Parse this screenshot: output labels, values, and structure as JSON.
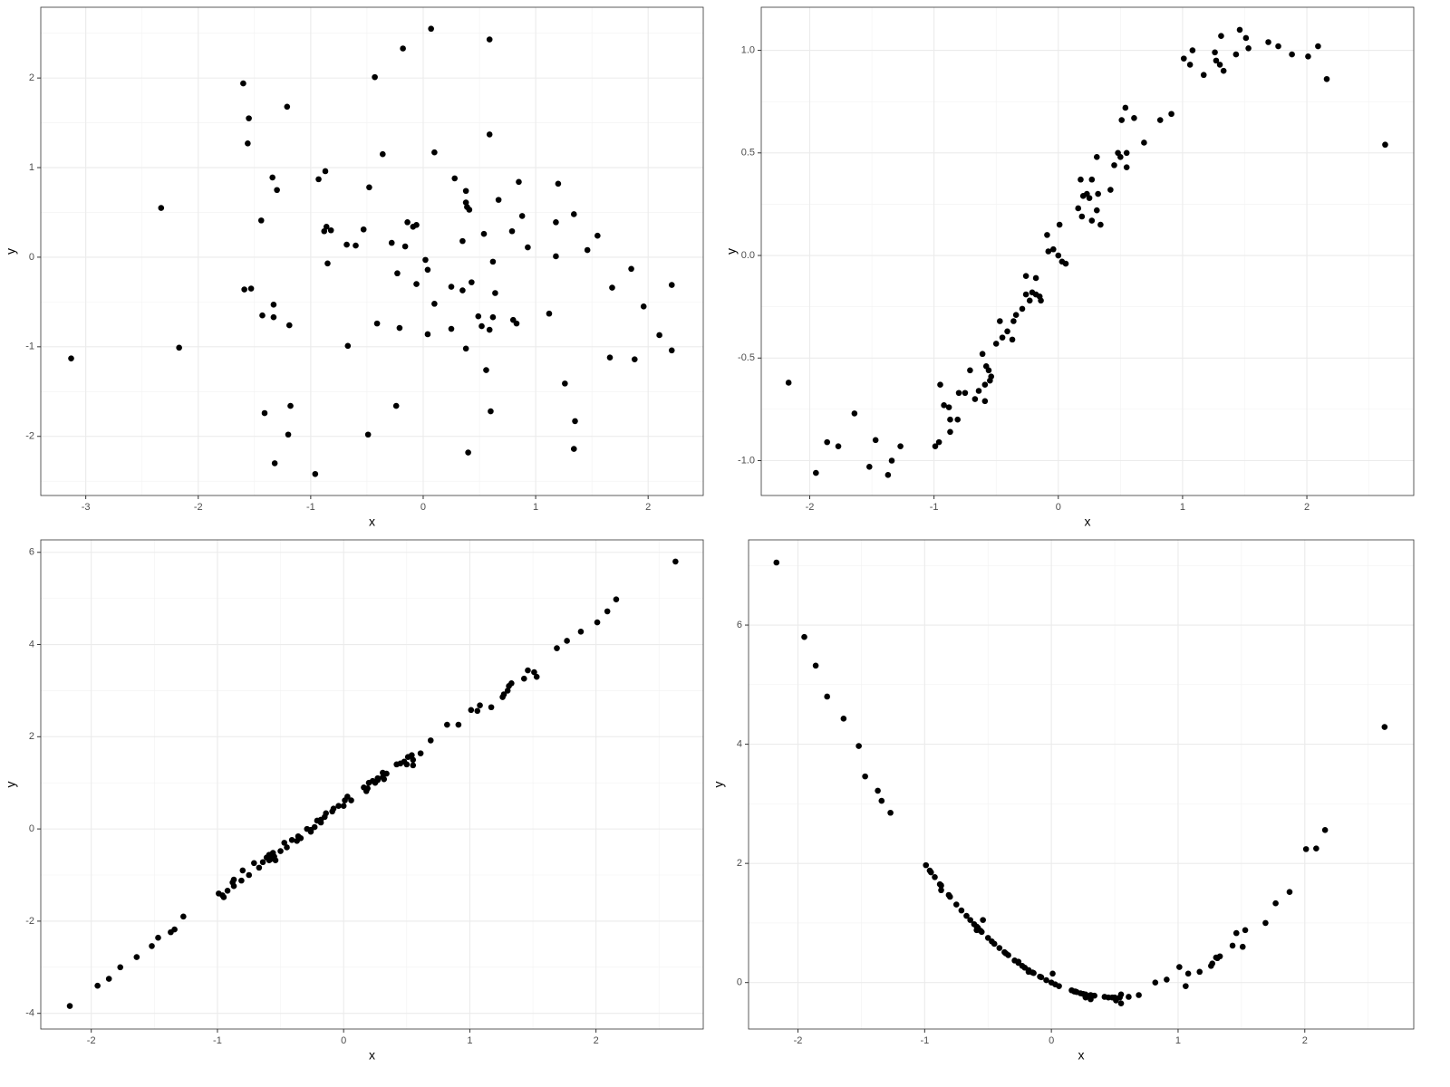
{
  "chart_data": [
    {
      "type": "scatter",
      "x_label": "x",
      "y_label": "y",
      "color": "#000000",
      "grid": true,
      "xlim": [
        -3.4,
        2.49
      ],
      "ylim": [
        -2.66,
        2.79
      ],
      "xticks": [
        -3,
        -2,
        -1,
        0,
        1,
        2
      ],
      "yticks": [
        -2,
        -1,
        0,
        1,
        2
      ],
      "x": [
        -3.13,
        -2.33,
        -2.17,
        -1.6,
        -1.55,
        -1.56,
        -1.59,
        -1.53,
        -1.44,
        -1.43,
        -1.41,
        -1.34,
        -1.3,
        -1.33,
        -1.33,
        -1.32,
        -1.21,
        -1.19,
        -1.18,
        -1.2,
        -0.96,
        -0.93,
        -0.87,
        -0.88,
        -0.86,
        -0.82,
        -0.85,
        -0.68,
        -0.6,
        -0.67,
        -0.53,
        -0.49,
        -0.48,
        -0.43,
        -0.41,
        -0.36,
        -0.28,
        -0.24,
        -0.23,
        -0.21,
        -0.18,
        -0.16,
        -0.14,
        -0.09,
        -0.06,
        -0.06,
        0.02,
        0.04,
        0.04,
        0.07,
        0.1,
        0.1,
        0.25,
        0.25,
        0.28,
        0.35,
        0.35,
        0.38,
        0.38,
        0.39,
        0.41,
        0.38,
        0.4,
        0.43,
        0.49,
        0.52,
        0.54,
        0.56,
        0.59,
        0.59,
        0.59,
        0.6,
        0.62,
        0.62,
        0.64,
        0.67,
        0.79,
        0.8,
        0.83,
        0.85,
        0.88,
        0.93,
        1.12,
        1.18,
        1.18,
        1.2,
        1.26,
        1.34,
        1.35,
        1.34,
        1.46,
        1.55,
        1.68,
        1.66,
        1.85,
        1.88,
        1.96,
        2.1,
        2.21,
        2.21
      ],
      "y": [
        -1.13,
        0.55,
        -1.01,
        1.94,
        1.55,
        1.27,
        -0.36,
        -0.35,
        0.41,
        -0.65,
        -1.74,
        0.89,
        0.75,
        -0.53,
        -0.67,
        -2.3,
        1.68,
        -0.76,
        -1.66,
        -1.98,
        -2.42,
        0.87,
        0.96,
        0.29,
        0.34,
        0.3,
        -0.07,
        0.14,
        0.13,
        -0.99,
        0.31,
        -1.98,
        0.78,
        2.01,
        -0.74,
        1.15,
        0.16,
        -1.66,
        -0.18,
        -0.79,
        2.33,
        0.12,
        0.39,
        0.34,
        0.36,
        -0.3,
        -0.03,
        -0.14,
        -0.86,
        2.55,
        1.17,
        -0.52,
        -0.33,
        -0.8,
        0.88,
        -0.37,
        0.18,
        0.74,
        0.61,
        0.56,
        0.53,
        -1.02,
        -2.18,
        -0.28,
        -0.66,
        -0.77,
        0.26,
        -1.26,
        2.43,
        1.37,
        -0.81,
        -1.72,
        -0.05,
        -0.67,
        -0.4,
        0.64,
        0.29,
        -0.7,
        -0.74,
        0.84,
        0.46,
        0.11,
        -0.63,
        0.01,
        0.39,
        0.82,
        -1.41,
        0.48,
        -1.83,
        -2.14,
        0.08,
        0.24,
        -0.34,
        -1.12,
        -0.13,
        -1.14,
        -0.55,
        -0.87,
        -0.31,
        -1.04
      ]
    },
    {
      "type": "scatter",
      "x_label": "x",
      "y_label": "y",
      "color": "#000000",
      "grid": true,
      "xlim": [
        -2.39,
        2.86
      ],
      "ylim": [
        -1.17,
        1.21
      ],
      "xticks": [
        -2,
        -1,
        0,
        1,
        2
      ],
      "yticks": [
        {
          "value": -1,
          "label": "-1.0"
        },
        {
          "value": -0.5,
          "label": "-0.5"
        },
        {
          "value": 0,
          "label": "0.0"
        },
        {
          "value": 0.5,
          "label": "0.5"
        },
        {
          "value": 1,
          "label": "1.0"
        }
      ],
      "x": [
        -2.17,
        -1.95,
        -1.86,
        -1.77,
        -1.64,
        -1.52,
        -1.47,
        -1.37,
        -1.34,
        -1.27,
        -0.99,
        -0.96,
        -0.95,
        -0.92,
        -0.88,
        -0.87,
        -0.87,
        -0.81,
        -0.8,
        -0.75,
        -0.71,
        -0.67,
        -0.64,
        -0.61,
        -0.59,
        -0.59,
        -0.58,
        -0.56,
        -0.55,
        -0.54,
        -0.5,
        -0.47,
        -0.45,
        -0.41,
        -0.37,
        -0.36,
        -0.34,
        -0.29,
        -0.26,
        -0.26,
        -0.23,
        -0.21,
        -0.18,
        -0.18,
        -0.15,
        -0.14,
        -0.09,
        -0.08,
        -0.04,
        0.0,
        0.01,
        0.03,
        0.06,
        0.16,
        0.18,
        0.19,
        0.2,
        0.23,
        0.25,
        0.27,
        0.27,
        0.31,
        0.31,
        0.32,
        0.34,
        0.42,
        0.45,
        0.48,
        0.5,
        0.51,
        0.54,
        0.55,
        0.55,
        0.61,
        0.69,
        0.82,
        0.91,
        1.01,
        1.06,
        1.08,
        1.17,
        1.26,
        1.27,
        1.3,
        1.31,
        1.33,
        1.43,
        1.46,
        1.51,
        1.53,
        1.69,
        1.77,
        1.88,
        2.01,
        2.09,
        2.16,
        2.63
      ],
      "y": [
        -0.62,
        -1.06,
        -0.91,
        -0.93,
        -0.77,
        -1.03,
        -0.9,
        -1.07,
        -1.0,
        -0.93,
        -0.93,
        -0.91,
        -0.63,
        -0.73,
        -0.74,
        -0.8,
        -0.86,
        -0.8,
        -0.67,
        -0.67,
        -0.56,
        -0.7,
        -0.66,
        -0.48,
        -0.71,
        -0.63,
        -0.54,
        -0.56,
        -0.61,
        -0.59,
        -0.43,
        -0.32,
        -0.4,
        -0.37,
        -0.41,
        -0.32,
        -0.29,
        -0.26,
        -0.1,
        -0.19,
        -0.22,
        -0.18,
        -0.11,
        -0.19,
        -0.2,
        -0.22,
        0.1,
        0.02,
        0.03,
        0.0,
        0.15,
        -0.03,
        -0.04,
        0.23,
        0.37,
        0.19,
        0.29,
        0.3,
        0.28,
        0.37,
        0.17,
        0.48,
        0.22,
        0.3,
        0.15,
        0.32,
        0.44,
        0.5,
        0.48,
        0.66,
        0.72,
        0.43,
        0.5,
        0.67,
        0.55,
        0.66,
        0.69,
        0.96,
        0.93,
        1.0,
        0.88,
        0.99,
        0.95,
        0.93,
        1.07,
        0.9,
        0.98,
        1.1,
        1.06,
        1.01,
        1.04,
        1.02,
        0.98,
        0.97,
        1.02,
        0.86,
        0.54
      ]
    },
    {
      "type": "scatter",
      "x_label": "x",
      "y_label": "y",
      "color": "#000000",
      "grid": true,
      "xlim": [
        -2.4,
        2.85
      ],
      "ylim": [
        -4.34,
        6.27
      ],
      "xticks": [
        -2,
        -1,
        0,
        1,
        2
      ],
      "yticks": [
        -4,
        -2,
        0,
        2,
        4,
        6
      ],
      "x": [
        -2.17,
        -1.95,
        -1.86,
        -1.77,
        -1.64,
        -1.52,
        -1.47,
        -1.37,
        -1.34,
        -1.27,
        -0.99,
        -0.96,
        -0.95,
        -0.92,
        -0.88,
        -0.87,
        -0.87,
        -0.81,
        -0.8,
        -0.75,
        -0.71,
        -0.67,
        -0.64,
        -0.61,
        -0.59,
        -0.59,
        -0.58,
        -0.56,
        -0.55,
        -0.54,
        -0.5,
        -0.47,
        -0.45,
        -0.41,
        -0.37,
        -0.36,
        -0.34,
        -0.29,
        -0.26,
        -0.26,
        -0.23,
        -0.21,
        -0.18,
        -0.18,
        -0.15,
        -0.14,
        -0.09,
        -0.08,
        -0.04,
        0.0,
        0.01,
        0.03,
        0.06,
        0.16,
        0.18,
        0.19,
        0.2,
        0.23,
        0.25,
        0.27,
        0.27,
        0.31,
        0.31,
        0.32,
        0.34,
        0.42,
        0.45,
        0.48,
        0.5,
        0.51,
        0.54,
        0.55,
        0.55,
        0.61,
        0.69,
        0.82,
        0.91,
        1.01,
        1.06,
        1.08,
        1.17,
        1.26,
        1.27,
        1.3,
        1.31,
        1.33,
        1.43,
        1.46,
        1.51,
        1.53,
        1.69,
        1.77,
        1.88,
        2.01,
        2.09,
        2.16,
        2.63
      ],
      "y": [
        -3.84,
        -3.4,
        -3.25,
        -3.0,
        -2.78,
        -2.54,
        -2.36,
        -2.24,
        -2.18,
        -1.9,
        -1.4,
        -1.44,
        -1.48,
        -1.34,
        -1.16,
        -1.24,
        -1.1,
        -1.12,
        -0.9,
        -1.0,
        -0.74,
        -0.84,
        -0.72,
        -0.62,
        -0.68,
        -0.56,
        -0.66,
        -0.52,
        -0.6,
        -0.68,
        -0.48,
        -0.3,
        -0.4,
        -0.24,
        -0.26,
        -0.16,
        -0.2,
        0.0,
        -0.02,
        -0.06,
        0.04,
        0.18,
        0.14,
        0.2,
        0.26,
        0.34,
        0.38,
        0.44,
        0.5,
        0.5,
        0.62,
        0.7,
        0.62,
        0.9,
        0.82,
        0.88,
        1.0,
        1.04,
        1.0,
        1.06,
        1.1,
        1.12,
        1.22,
        1.08,
        1.2,
        1.4,
        1.42,
        1.46,
        1.4,
        1.56,
        1.6,
        1.38,
        1.5,
        1.64,
        1.92,
        2.26,
        2.26,
        2.58,
        2.56,
        2.68,
        2.64,
        2.86,
        2.92,
        3.0,
        3.1,
        3.16,
        3.26,
        3.44,
        3.4,
        3.3,
        3.92,
        4.08,
        4.28,
        4.48,
        4.72,
        4.98,
        5.8
      ]
    },
    {
      "type": "scatter",
      "x_label": "x",
      "y_label": "y",
      "color": "#000000",
      "grid": true,
      "xlim": [
        -2.39,
        2.86
      ],
      "ylim": [
        -0.78,
        7.43
      ],
      "xticks": [
        -2,
        -1,
        0,
        1,
        2
      ],
      "yticks": [
        0,
        2,
        4,
        6
      ],
      "x": [
        -2.17,
        -1.95,
        -1.86,
        -1.77,
        -1.64,
        -1.52,
        -1.47,
        -1.37,
        -1.34,
        -1.27,
        -0.99,
        -0.96,
        -0.95,
        -0.92,
        -0.88,
        -0.87,
        -0.87,
        -0.81,
        -0.8,
        -0.75,
        -0.71,
        -0.67,
        -0.64,
        -0.61,
        -0.59,
        -0.59,
        -0.58,
        -0.56,
        -0.55,
        -0.54,
        -0.5,
        -0.47,
        -0.45,
        -0.41,
        -0.37,
        -0.36,
        -0.34,
        -0.29,
        -0.26,
        -0.26,
        -0.23,
        -0.21,
        -0.18,
        -0.18,
        -0.15,
        -0.14,
        -0.09,
        -0.08,
        -0.04,
        0.0,
        0.01,
        0.03,
        0.06,
        0.16,
        0.18,
        0.19,
        0.2,
        0.23,
        0.25,
        0.27,
        0.27,
        0.31,
        0.31,
        0.32,
        0.34,
        0.42,
        0.45,
        0.48,
        0.5,
        0.51,
        0.54,
        0.55,
        0.55,
        0.61,
        0.69,
        0.82,
        0.91,
        1.01,
        1.06,
        1.08,
        1.17,
        1.26,
        1.27,
        1.3,
        1.31,
        1.33,
        1.43,
        1.46,
        1.51,
        1.53,
        1.69,
        1.77,
        1.88,
        2.01,
        2.09,
        2.16,
        2.63
      ],
      "y": [
        7.05,
        5.8,
        5.32,
        4.8,
        4.43,
        3.97,
        3.46,
        3.22,
        3.05,
        2.85,
        1.97,
        1.88,
        1.85,
        1.77,
        1.65,
        1.63,
        1.55,
        1.47,
        1.44,
        1.31,
        1.21,
        1.12,
        1.05,
        0.98,
        0.94,
        0.88,
        0.92,
        0.87,
        0.85,
        1.05,
        0.75,
        0.69,
        0.65,
        0.58,
        0.51,
        0.49,
        0.46,
        0.37,
        0.33,
        0.35,
        0.28,
        0.25,
        0.21,
        0.18,
        0.17,
        0.16,
        0.1,
        0.09,
        0.04,
        0.0,
        0.15,
        -0.03,
        -0.06,
        -0.13,
        -0.15,
        -0.15,
        -0.16,
        -0.18,
        -0.19,
        -0.2,
        -0.25,
        -0.21,
        -0.28,
        -0.22,
        -0.22,
        -0.24,
        -0.25,
        -0.25,
        -0.25,
        -0.3,
        -0.25,
        -0.35,
        -0.2,
        -0.24,
        -0.21,
        0.0,
        0.05,
        0.26,
        -0.06,
        0.15,
        0.18,
        0.28,
        0.32,
        0.42,
        0.41,
        0.44,
        0.62,
        0.83,
        0.6,
        0.88,
        1.0,
        1.33,
        1.52,
        2.24,
        2.25,
        2.56,
        4.29
      ]
    }
  ]
}
